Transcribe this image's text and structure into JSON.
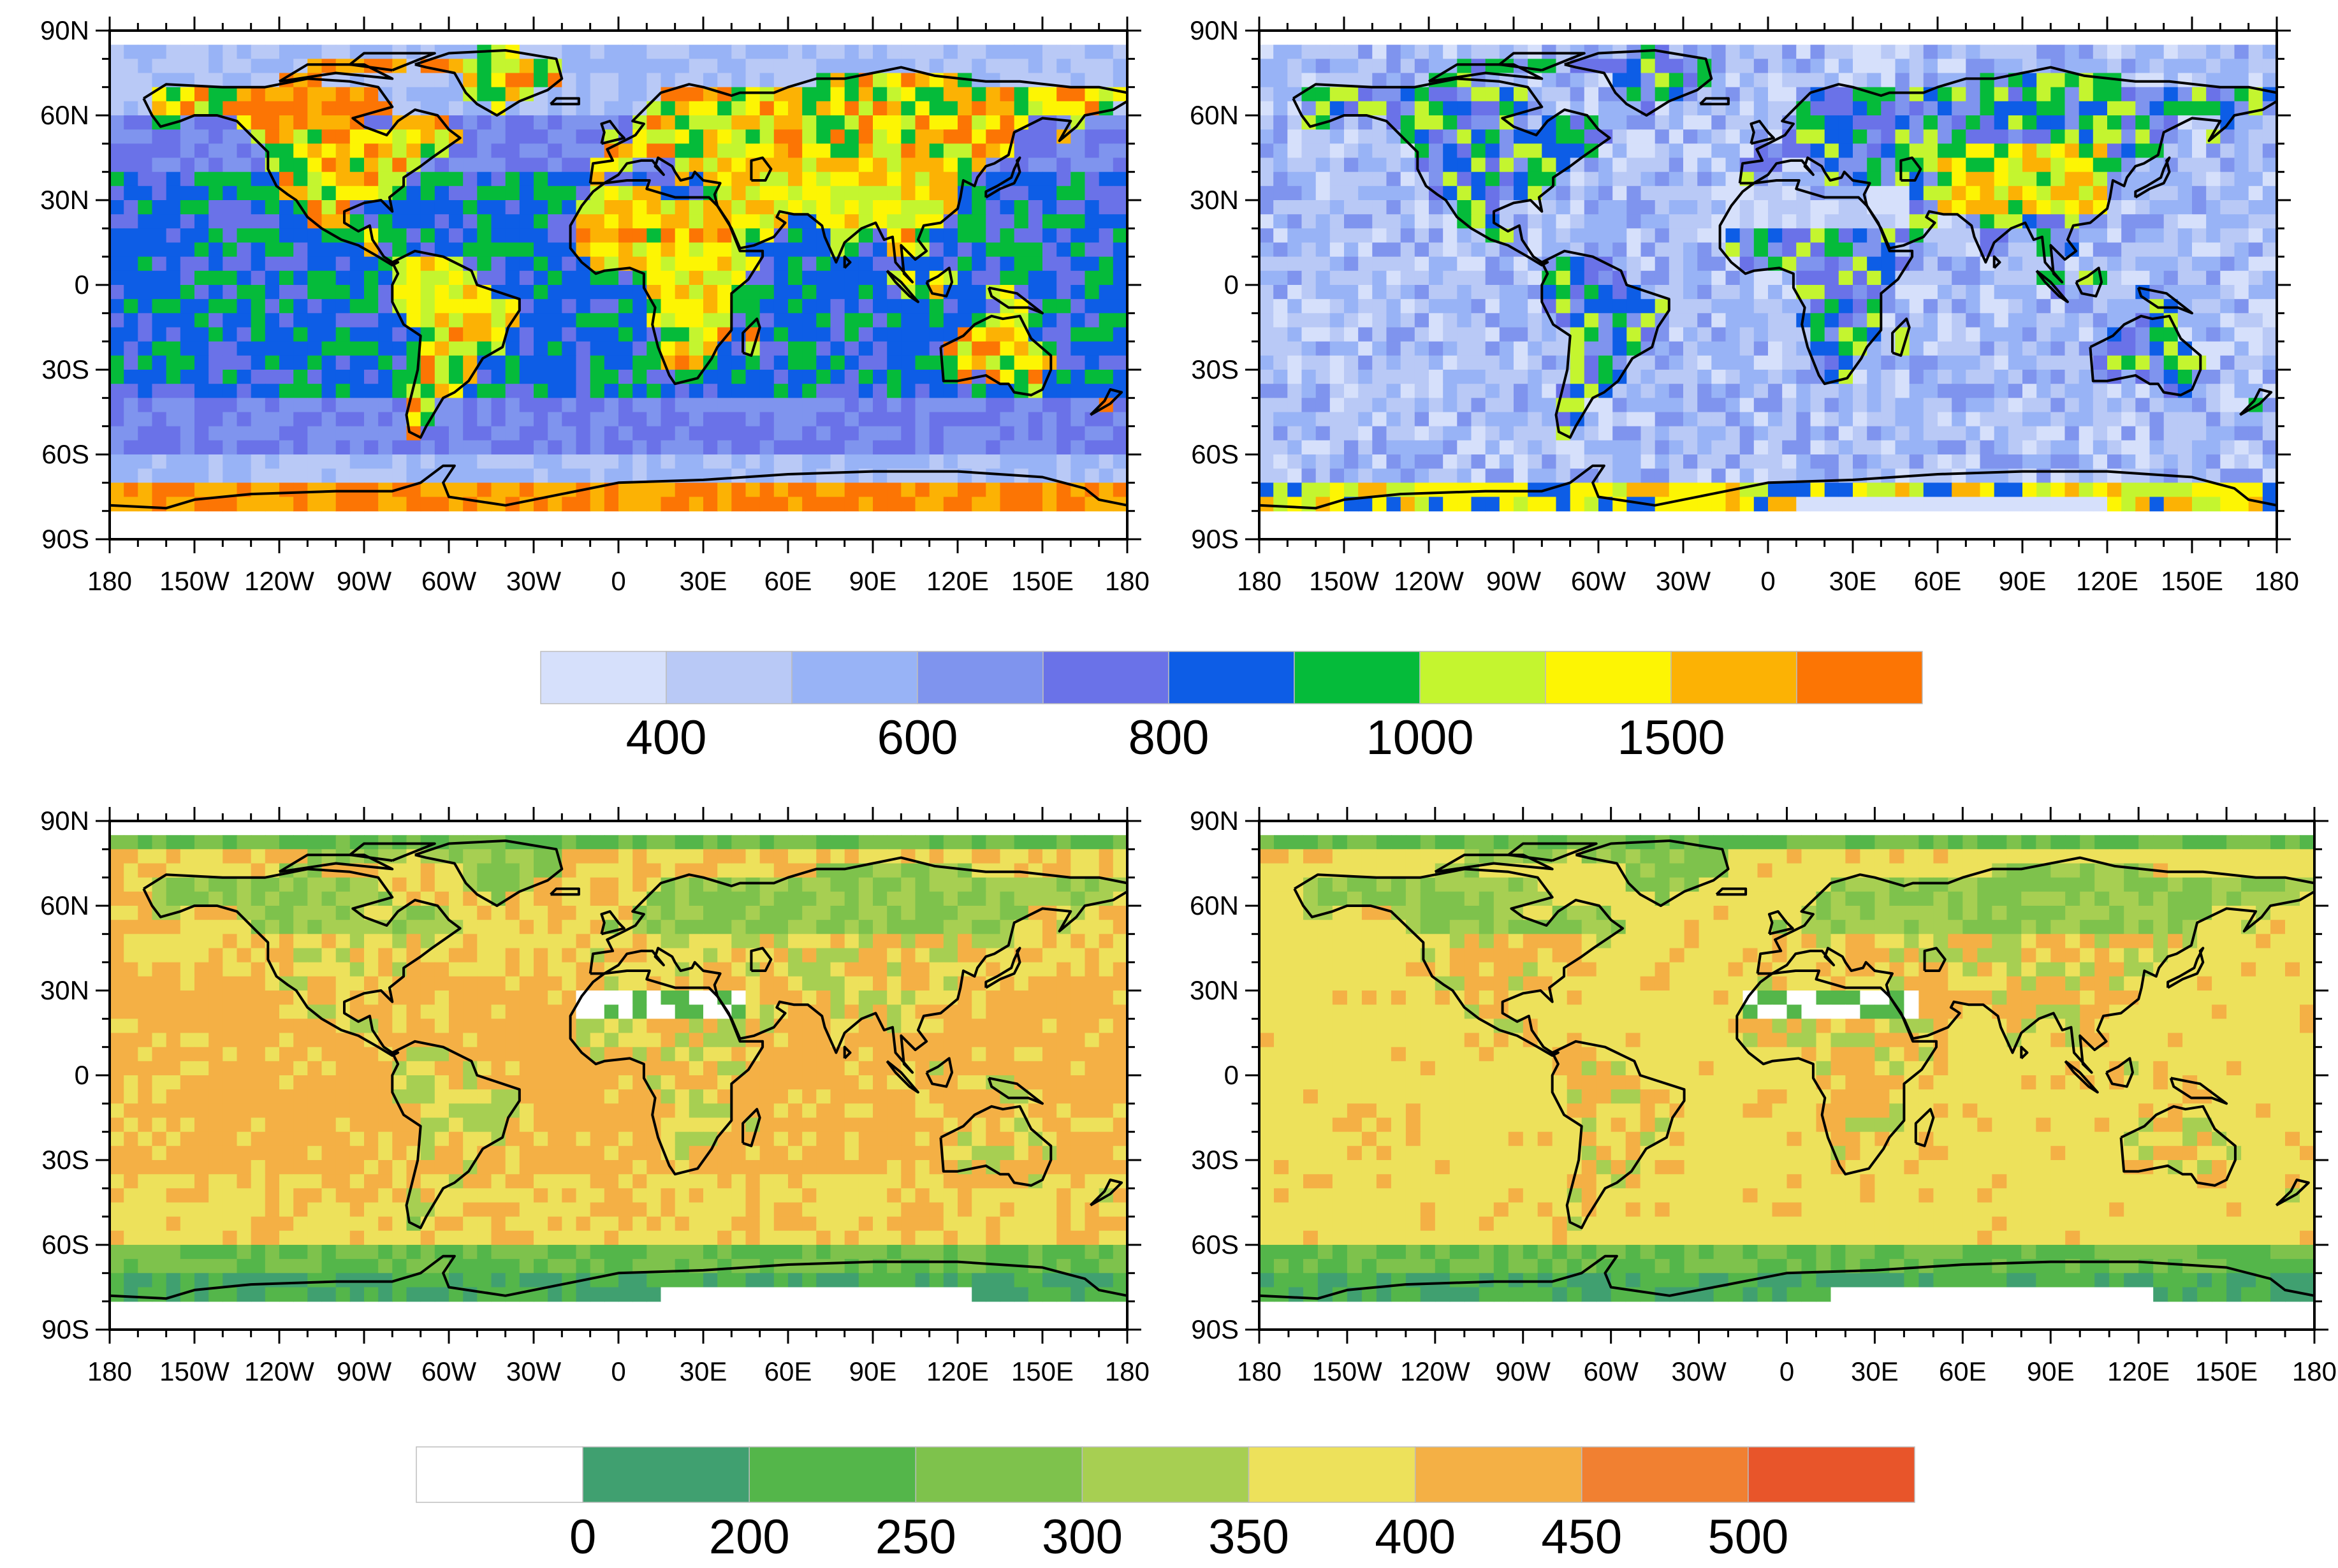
{
  "panels": [
    {
      "id": "top-left",
      "grid_cell_deg": 5,
      "colorbar": "cb1",
      "lat_ticks": [
        "90N",
        "60N",
        "30N",
        "0",
        "30S",
        "60S",
        "90S"
      ],
      "lon_ticks": [
        "180",
        "150W",
        "120W",
        "90W",
        "60W",
        "30W",
        "0",
        "30E",
        "60E",
        "90E",
        "120E",
        "150E",
        "180"
      ]
    },
    {
      "id": "top-right",
      "grid_cell_deg": 5,
      "colorbar": "cb1",
      "lat_ticks": [
        "90N",
        "60N",
        "30N",
        "0",
        "30S",
        "60S",
        "90S"
      ],
      "lon_ticks": [
        "180",
        "150W",
        "120W",
        "90W",
        "60W",
        "30W",
        "0",
        "30E",
        "60E",
        "90E",
        "120E",
        "150E",
        "180"
      ]
    },
    {
      "id": "bottom-left",
      "grid_cell_deg": 5,
      "colorbar": "cb2",
      "lat_ticks": [
        "90N",
        "60N",
        "30N",
        "0",
        "30S",
        "60S",
        "90S"
      ],
      "lon_ticks": [
        "180",
        "150W",
        "120W",
        "90W",
        "60W",
        "30W",
        "0",
        "30E",
        "60E",
        "90E",
        "120E",
        "150E",
        "180"
      ]
    },
    {
      "id": "bottom-right",
      "grid_cell_deg": 5,
      "colorbar": "cb2",
      "lat_ticks": [
        "90N",
        "60N",
        "30N",
        "0",
        "30S",
        "60S",
        "90S"
      ],
      "lon_ticks": [
        "180",
        "150W",
        "120W",
        "90W",
        "60W",
        "30W",
        "0",
        "30E",
        "60E",
        "90E",
        "120E",
        "150E",
        "180"
      ]
    }
  ],
  "colorbars": {
    "cb1": {
      "colors": [
        "#d6e0fb",
        "#b9c9f6",
        "#98b3f6",
        "#7f94ee",
        "#6a72e8",
        "#0d5de6",
        "#05bb3a",
        "#c4f52f",
        "#fdf503",
        "#fcb204",
        "#fc7504"
      ],
      "labels": [
        "400",
        "600",
        "800",
        "1000",
        "1500"
      ],
      "label_boundaries": [
        1,
        3,
        5,
        7,
        9
      ]
    },
    "cb2": {
      "colors": [
        "#ffffff",
        "#40a070",
        "#54b64a",
        "#7ec24c",
        "#a7cf52",
        "#ede15b",
        "#f4b045",
        "#f18031",
        "#e8552a"
      ],
      "labels": [
        "0",
        "200",
        "250",
        "300",
        "350",
        "400",
        "450",
        "500"
      ],
      "label_boundaries": [
        1,
        2,
        3,
        4,
        5,
        6,
        7,
        8
      ]
    }
  }
}
